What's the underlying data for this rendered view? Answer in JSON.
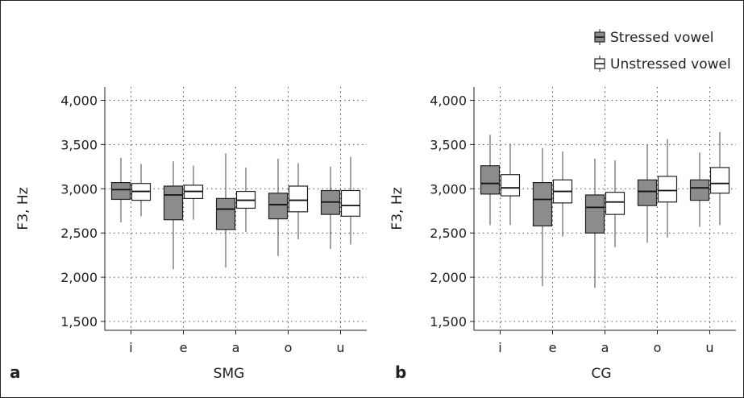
{
  "legend": {
    "position": "top-right",
    "items": [
      {
        "label": "Stressed vowel",
        "color": "#8c8c8c"
      },
      {
        "label": "Unstressed vowel",
        "color": "#ffffff"
      }
    ]
  },
  "chart_data": [
    {
      "type": "box",
      "panel_label": "a",
      "xlabel": "SMG",
      "ylabel": "F3, Hz",
      "ylim": [
        1400,
        4150
      ],
      "yticks": [
        1500,
        2000,
        2500,
        3000,
        3500,
        4000
      ],
      "ytick_labels": [
        "1,500",
        "2,000",
        "2,500",
        "3,000",
        "3,500",
        "4,000"
      ],
      "grid": "dotted",
      "categories": [
        "i",
        "e",
        "a",
        "o",
        "u"
      ],
      "series": [
        {
          "name": "Stressed vowel",
          "color": "#8c8c8c",
          "boxes": [
            {
              "min": 2620,
              "q1": 2880,
              "median": 2990,
              "q3": 3070,
              "max": 3350
            },
            {
              "min": 2090,
              "q1": 2650,
              "median": 2930,
              "q3": 3030,
              "max": 3310
            },
            {
              "min": 2110,
              "q1": 2540,
              "median": 2770,
              "q3": 2890,
              "max": 3400
            },
            {
              "min": 2240,
              "q1": 2660,
              "median": 2820,
              "q3": 2950,
              "max": 3340
            },
            {
              "min": 2320,
              "q1": 2710,
              "median": 2850,
              "q3": 2980,
              "max": 3250
            }
          ]
        },
        {
          "name": "Unstressed vowel",
          "color": "#ffffff",
          "boxes": [
            {
              "min": 2690,
              "q1": 2870,
              "median": 2970,
              "q3": 3060,
              "max": 3280
            },
            {
              "min": 2650,
              "q1": 2890,
              "median": 2970,
              "q3": 3040,
              "max": 3260
            },
            {
              "min": 2510,
              "q1": 2780,
              "median": 2870,
              "q3": 2970,
              "max": 3240
            },
            {
              "min": 2430,
              "q1": 2740,
              "median": 2870,
              "q3": 3030,
              "max": 3290
            },
            {
              "min": 2370,
              "q1": 2690,
              "median": 2810,
              "q3": 2980,
              "max": 3360
            }
          ]
        }
      ]
    },
    {
      "type": "box",
      "panel_label": "b",
      "xlabel": "CG",
      "ylabel": "F3, Hz",
      "ylim": [
        1400,
        4150
      ],
      "yticks": [
        1500,
        2000,
        2500,
        3000,
        3500,
        4000
      ],
      "ytick_labels": [
        "1,500",
        "2,000",
        "2,500",
        "3,000",
        "3,500",
        "4,000"
      ],
      "grid": "dotted",
      "categories": [
        "i",
        "e",
        "a",
        "o",
        "u"
      ],
      "series": [
        {
          "name": "Stressed vowel",
          "color": "#8c8c8c",
          "boxes": [
            {
              "min": 2590,
              "q1": 2940,
              "median": 3060,
              "q3": 3260,
              "max": 3610
            },
            {
              "min": 1900,
              "q1": 2580,
              "median": 2880,
              "q3": 3070,
              "max": 3460
            },
            {
              "min": 1880,
              "q1": 2500,
              "median": 2790,
              "q3": 2930,
              "max": 3340
            },
            {
              "min": 2390,
              "q1": 2810,
              "median": 2970,
              "q3": 3100,
              "max": 3500
            },
            {
              "min": 2570,
              "q1": 2870,
              "median": 3010,
              "q3": 3100,
              "max": 3410
            }
          ]
        },
        {
          "name": "Unstressed vowel",
          "color": "#ffffff",
          "boxes": [
            {
              "min": 2590,
              "q1": 2920,
              "median": 3010,
              "q3": 3160,
              "max": 3510
            },
            {
              "min": 2460,
              "q1": 2840,
              "median": 2970,
              "q3": 3100,
              "max": 3420
            },
            {
              "min": 2340,
              "q1": 2710,
              "median": 2850,
              "q3": 2960,
              "max": 3320
            },
            {
              "min": 2450,
              "q1": 2850,
              "median": 2980,
              "q3": 3140,
              "max": 3560
            },
            {
              "min": 2590,
              "q1": 2950,
              "median": 3060,
              "q3": 3240,
              "max": 3640
            }
          ]
        }
      ]
    }
  ]
}
